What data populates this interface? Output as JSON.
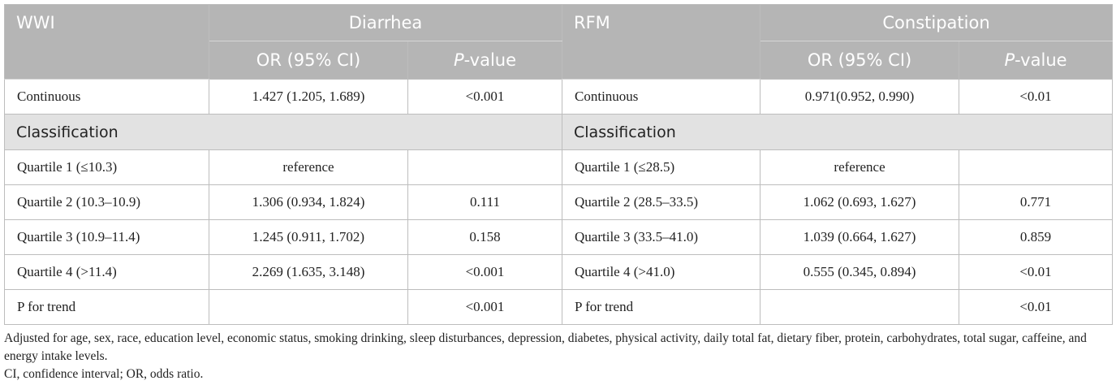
{
  "table": {
    "header": {
      "left_group_label": "WWI",
      "left_outcome": "Diarrhea",
      "right_group_label": "RFM",
      "right_outcome": "Constipation",
      "or_label": "OR (95% CI)",
      "p_italic": "P",
      "p_suffix": "-value"
    },
    "continuous": {
      "left": [
        "Continuous",
        "1.427 (1.205, 1.689)",
        "<0.001"
      ],
      "right": [
        "Continuous",
        "0.971(0.952, 0.990)",
        "<0.01"
      ]
    },
    "classification_label": "Classification",
    "rows": [
      {
        "left": [
          "Quartile 1 (≤10.3)",
          "reference",
          ""
        ],
        "right": [
          "Quartile 1 (≤28.5)",
          "reference",
          ""
        ]
      },
      {
        "left": [
          "Quartile 2 (10.3–10.9)",
          "1.306 (0.934, 1.824)",
          "0.111"
        ],
        "right": [
          "Quartile 2 (28.5–33.5)",
          "1.062 (0.693, 1.627)",
          "0.771"
        ]
      },
      {
        "left": [
          "Quartile 3 (10.9–11.4)",
          "1.245 (0.911, 1.702)",
          "0.158"
        ],
        "right": [
          "Quartile 3 (33.5–41.0)",
          "1.039 (0.664, 1.627)",
          "0.859"
        ]
      },
      {
        "left": [
          "Quartile 4 (>11.4)",
          "2.269 (1.635, 3.148)",
          "<0.001"
        ],
        "right": [
          "Quartile 4 (>41.0)",
          "0.555 (0.345, 0.894)",
          "<0.01"
        ]
      },
      {
        "left": [
          "P for trend",
          "",
          "<0.001"
        ],
        "right": [
          "P for trend",
          "",
          "<0.01"
        ]
      }
    ]
  },
  "footnotes": {
    "adjusted": "Adjusted for age, sex, race, education level, economic status, smoking drinking, sleep disturbances, depression, diabetes, physical activity, daily total fat, dietary fiber, protein, carbohydrates, total sugar, caffeine, and energy intake levels.",
    "abbreviations": "CI, confidence interval; OR, odds ratio."
  }
}
